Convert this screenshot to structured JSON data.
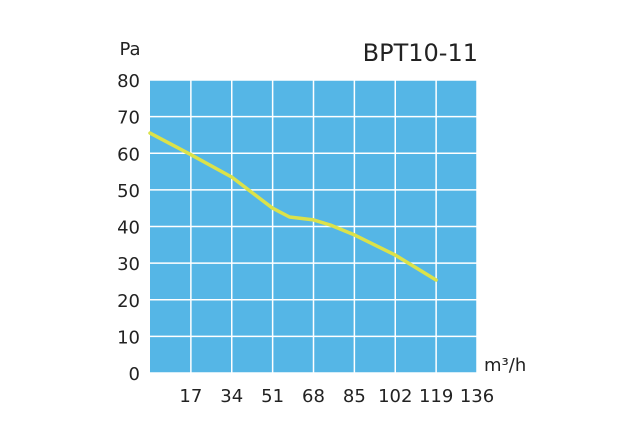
{
  "chart_data": {
    "type": "line",
    "title": "BPT10-11",
    "y_label": "Pa",
    "x_label": "m³/h",
    "x": [
      0,
      17,
      34,
      51,
      58,
      68,
      75,
      85,
      102,
      119
    ],
    "series": [
      {
        "color": "#dbe24a",
        "values": [
          65.5,
          59.6,
          53.5,
          45,
          42.6,
          41.8,
          40.4,
          37.7,
          32.2,
          25.4
        ]
      }
    ],
    "xlim": [
      0,
      136
    ],
    "xticks": [
      17,
      34,
      51,
      68,
      85,
      102,
      119,
      136
    ],
    "ylim": [
      0,
      80
    ],
    "yticks": [
      0,
      10,
      20,
      30,
      40,
      50,
      60,
      70,
      80
    ],
    "grid": true,
    "background": "#55b6e6"
  }
}
